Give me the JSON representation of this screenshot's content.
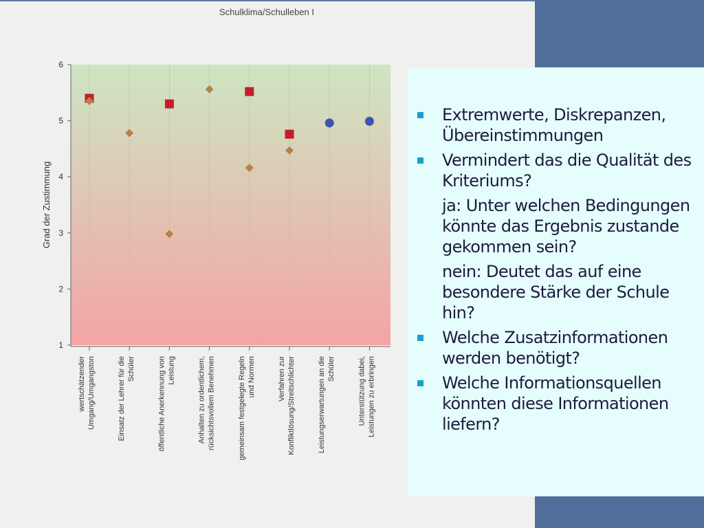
{
  "chart_data": {
    "type": "scatter",
    "title": "Schulklima/Schulleben I",
    "ylabel": "Grad der Zustimmung",
    "ylim": [
      1,
      6
    ],
    "yticks": [
      1,
      2,
      3,
      4,
      5,
      6
    ],
    "background_gradient": {
      "top": "#cde6c2",
      "bottom": "#f4a4a3"
    },
    "categories": [
      [
        "wertschätzender",
        "Umgang/Umgangston"
      ],
      [
        "Einsatz der Lehrer für die",
        "Schüler"
      ],
      [
        "öffentliche Anerkennung von",
        "Leistung"
      ],
      [
        "Anhalten zu ordentlichem,",
        "rücksichtsvollem Benehmen"
      ],
      [
        "gemeinsam festgelegte Regeln",
        "und Normen"
      ],
      [
        "Verfahren zur",
        "Konfliktlösung/Streitschlichter"
      ],
      [
        "Leistungserwartungen an die",
        "Schüler"
      ],
      [
        "Unterstützung dabei,",
        "Leistungen zu erbringen"
      ]
    ],
    "series": [
      {
        "marker": "square",
        "color": "#c41e2a",
        "values": [
          5.4,
          null,
          5.3,
          null,
          5.52,
          4.76,
          null,
          null
        ]
      },
      {
        "marker": "diamond",
        "color": "#b8804a",
        "values": [
          5.35,
          4.78,
          2.98,
          5.56,
          4.16,
          4.47,
          null,
          null
        ]
      },
      {
        "marker": "circle",
        "color": "#3f52b0",
        "values": [
          null,
          null,
          null,
          null,
          null,
          null,
          4.96,
          4.99
        ]
      }
    ]
  },
  "panel": {
    "items": [
      {
        "type": "bullet",
        "text": "Extremwerte, Diskrepanzen, Übereinstimmungen"
      },
      {
        "type": "bullet",
        "text": "Vermindert das die Qualität des Kriteriums?"
      },
      {
        "type": "sub",
        "text": "ja: Unter welchen Bedingungen könnte das Ergebnis zustande gekommen sein?"
      },
      {
        "type": "sub",
        "text": "nein: Deutet das auf eine besondere Stärke der Schule hin?"
      },
      {
        "type": "bullet",
        "text": "Welche Zusatzinformationen werden benötigt?"
      },
      {
        "type": "bullet",
        "text": "Welche Informationsquellen könnten diese Informationen liefern?"
      }
    ],
    "colors": {
      "bullet": "#16a2c7",
      "background": "#e6fdfd"
    }
  }
}
